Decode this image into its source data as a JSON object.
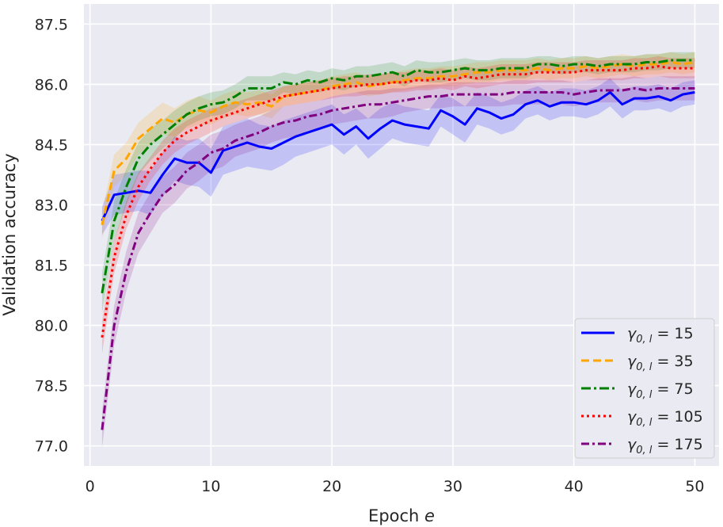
{
  "chart_data": {
    "type": "line",
    "title": "",
    "xlabel": "Epoch e",
    "xlabel_main": "Epoch ",
    "xlabel_var": "e",
    "ylabel": "Validation accuracy",
    "xlim": [
      -0.5,
      52.0
    ],
    "ylim": [
      76.5,
      88.0
    ],
    "xticks": [
      0,
      10,
      20,
      30,
      40,
      50
    ],
    "xtick_labels": [
      "0",
      "10",
      "20",
      "30",
      "40",
      "50"
    ],
    "yticks": [
      77.0,
      78.5,
      80.0,
      81.5,
      83.0,
      84.5,
      86.0,
      87.5
    ],
    "ytick_labels": [
      "77.0",
      "78.5",
      "80.0",
      "81.5",
      "83.0",
      "84.5",
      "86.0",
      "87.5"
    ],
    "grid": true,
    "legend_position": "lower-right",
    "x": [
      1,
      2,
      3,
      4,
      5,
      6,
      7,
      8,
      9,
      10,
      11,
      12,
      13,
      14,
      15,
      16,
      17,
      18,
      19,
      20,
      21,
      22,
      23,
      24,
      25,
      26,
      27,
      28,
      29,
      30,
      31,
      32,
      33,
      34,
      35,
      36,
      37,
      38,
      39,
      40,
      41,
      42,
      43,
      44,
      45,
      46,
      47,
      48,
      49,
      50
    ],
    "series": [
      {
        "name": "γ0,l = 15",
        "legend_prefix": "γ",
        "legend_sub": "0, l",
        "legend_value": " = 15",
        "color": "#0000ff",
        "dash": "",
        "values": [
          82.6,
          83.25,
          83.3,
          83.35,
          83.3,
          83.75,
          84.15,
          84.05,
          84.05,
          83.8,
          84.35,
          84.45,
          84.55,
          84.45,
          84.4,
          84.55,
          84.7,
          84.8,
          84.9,
          85.0,
          84.75,
          84.95,
          84.65,
          84.9,
          85.1,
          85.0,
          84.95,
          84.9,
          85.35,
          85.2,
          85.0,
          85.4,
          85.3,
          85.15,
          85.25,
          85.5,
          85.6,
          85.45,
          85.55,
          85.55,
          85.5,
          85.6,
          85.8,
          85.5,
          85.65,
          85.65,
          85.7,
          85.6,
          85.75,
          85.8
        ],
        "band": [
          0.35,
          0.5,
          0.5,
          0.5,
          0.55,
          0.55,
          0.55,
          0.55,
          0.6,
          0.6,
          0.6,
          0.6,
          0.6,
          0.55,
          0.55,
          0.55,
          0.5,
          0.5,
          0.5,
          0.5,
          0.5,
          0.45,
          0.5,
          0.5,
          0.45,
          0.45,
          0.45,
          0.45,
          0.4,
          0.45,
          0.45,
          0.4,
          0.4,
          0.4,
          0.4,
          0.35,
          0.35,
          0.35,
          0.35,
          0.35,
          0.35,
          0.35,
          0.35,
          0.35,
          0.3,
          0.3,
          0.3,
          0.3,
          0.3,
          0.3
        ]
      },
      {
        "name": "γ0,l = 35",
        "legend_prefix": "γ",
        "legend_sub": "0, l",
        "legend_value": " = 35",
        "color": "#ffa500",
        "dash": "10 5",
        "values": [
          82.5,
          83.85,
          84.15,
          84.65,
          84.9,
          85.15,
          85.05,
          85.25,
          85.35,
          85.3,
          85.45,
          85.55,
          85.5,
          85.55,
          85.45,
          85.7,
          85.75,
          85.8,
          85.85,
          85.95,
          86.0,
          86.05,
          85.95,
          86.0,
          86.05,
          86.1,
          86.15,
          86.15,
          86.2,
          86.2,
          86.25,
          86.3,
          86.3,
          86.35,
          86.35,
          86.35,
          86.4,
          86.35,
          86.4,
          86.4,
          86.45,
          86.4,
          86.45,
          86.5,
          86.45,
          86.5,
          86.5,
          86.55,
          86.5,
          86.55
        ],
        "band": [
          0.35,
          0.4,
          0.4,
          0.4,
          0.4,
          0.4,
          0.35,
          0.35,
          0.35,
          0.3,
          0.3,
          0.3,
          0.3,
          0.3,
          0.3,
          0.25,
          0.25,
          0.25,
          0.25,
          0.25,
          0.25,
          0.25,
          0.25,
          0.25,
          0.25,
          0.25,
          0.25,
          0.25,
          0.25,
          0.25,
          0.25,
          0.25,
          0.25,
          0.25,
          0.25,
          0.25,
          0.25,
          0.25,
          0.25,
          0.25,
          0.25,
          0.25,
          0.25,
          0.25,
          0.25,
          0.25,
          0.25,
          0.25,
          0.25,
          0.25
        ]
      },
      {
        "name": "γ0,l = 75",
        "legend_prefix": "γ",
        "legend_sub": "0, l",
        "legend_value": " = 75",
        "color": "#008000",
        "dash": "12 4 3 4",
        "values": [
          80.8,
          82.6,
          83.45,
          84.15,
          84.5,
          84.75,
          85.0,
          85.25,
          85.4,
          85.5,
          85.55,
          85.7,
          85.9,
          85.9,
          85.9,
          86.05,
          86.0,
          86.1,
          86.05,
          86.15,
          86.1,
          86.2,
          86.2,
          86.25,
          86.3,
          86.2,
          86.35,
          86.3,
          86.3,
          86.35,
          86.4,
          86.35,
          86.35,
          86.4,
          86.4,
          86.4,
          86.5,
          86.5,
          86.45,
          86.5,
          86.5,
          86.45,
          86.5,
          86.5,
          86.5,
          86.55,
          86.55,
          86.6,
          86.6,
          86.6
        ],
        "band": [
          0.5,
          0.5,
          0.45,
          0.4,
          0.4,
          0.35,
          0.35,
          0.3,
          0.3,
          0.3,
          0.3,
          0.3,
          0.3,
          0.3,
          0.3,
          0.25,
          0.25,
          0.25,
          0.25,
          0.25,
          0.25,
          0.25,
          0.25,
          0.25,
          0.25,
          0.25,
          0.25,
          0.25,
          0.25,
          0.25,
          0.25,
          0.25,
          0.25,
          0.25,
          0.25,
          0.25,
          0.2,
          0.2,
          0.2,
          0.2,
          0.2,
          0.2,
          0.2,
          0.2,
          0.2,
          0.2,
          0.2,
          0.2,
          0.2,
          0.2
        ]
      },
      {
        "name": "γ0,l = 105",
        "legend_prefix": "γ",
        "legend_sub": "0, l",
        "legend_value": " = 105",
        "color": "#ff0000",
        "dash": "3 4",
        "values": [
          79.7,
          81.7,
          82.75,
          83.45,
          83.9,
          84.3,
          84.6,
          84.8,
          84.95,
          85.1,
          85.2,
          85.3,
          85.4,
          85.5,
          85.6,
          85.7,
          85.75,
          85.8,
          85.85,
          85.9,
          85.95,
          85.95,
          86.0,
          86.0,
          86.05,
          86.05,
          86.1,
          86.1,
          86.15,
          86.1,
          86.2,
          86.15,
          86.2,
          86.25,
          86.25,
          86.25,
          86.3,
          86.3,
          86.3,
          86.3,
          86.35,
          86.35,
          86.35,
          86.35,
          86.4,
          86.4,
          86.45,
          86.4,
          86.4,
          86.4
        ],
        "band": [
          0.4,
          0.4,
          0.35,
          0.35,
          0.3,
          0.3,
          0.3,
          0.3,
          0.3,
          0.3,
          0.25,
          0.25,
          0.25,
          0.25,
          0.25,
          0.25,
          0.25,
          0.25,
          0.25,
          0.25,
          0.25,
          0.25,
          0.25,
          0.25,
          0.25,
          0.25,
          0.25,
          0.25,
          0.25,
          0.25,
          0.25,
          0.25,
          0.25,
          0.25,
          0.25,
          0.25,
          0.25,
          0.25,
          0.25,
          0.25,
          0.25,
          0.25,
          0.25,
          0.25,
          0.25,
          0.25,
          0.25,
          0.25,
          0.25,
          0.25
        ]
      },
      {
        "name": "γ0,l = 175",
        "legend_prefix": "γ",
        "legend_sub": "0, l",
        "legend_value": " = 175",
        "color": "#800080",
        "dash": "10 4 3 4",
        "values": [
          77.4,
          80.0,
          81.35,
          82.3,
          82.8,
          83.25,
          83.5,
          83.85,
          84.05,
          84.3,
          84.4,
          84.6,
          84.7,
          84.8,
          84.95,
          85.05,
          85.1,
          85.2,
          85.25,
          85.35,
          85.4,
          85.45,
          85.5,
          85.5,
          85.55,
          85.6,
          85.65,
          85.7,
          85.7,
          85.75,
          85.75,
          85.75,
          85.75,
          85.75,
          85.8,
          85.8,
          85.8,
          85.8,
          85.8,
          85.75,
          85.8,
          85.85,
          85.85,
          85.85,
          85.9,
          85.85,
          85.9,
          85.9,
          85.9,
          85.9
        ],
        "band": [
          0.45,
          0.5,
          0.5,
          0.5,
          0.5,
          0.45,
          0.45,
          0.45,
          0.45,
          0.45,
          0.45,
          0.4,
          0.4,
          0.4,
          0.4,
          0.4,
          0.4,
          0.35,
          0.35,
          0.35,
          0.35,
          0.35,
          0.35,
          0.35,
          0.35,
          0.3,
          0.3,
          0.3,
          0.3,
          0.3,
          0.3,
          0.3,
          0.3,
          0.3,
          0.3,
          0.3,
          0.3,
          0.3,
          0.3,
          0.3,
          0.3,
          0.3,
          0.3,
          0.3,
          0.3,
          0.3,
          0.3,
          0.3,
          0.3,
          0.3
        ]
      }
    ]
  }
}
